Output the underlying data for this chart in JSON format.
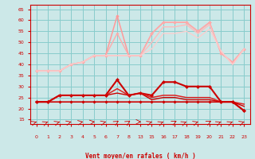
{
  "background_color": "#cce8e8",
  "grid_color": "#88cccc",
  "ylim": [
    13,
    67
  ],
  "yticks": [
    15,
    20,
    25,
    30,
    35,
    40,
    45,
    50,
    55,
    60,
    65
  ],
  "xlabel": "Vent moyen/en rafales ( km/h )",
  "x_labels": [
    "0",
    "1",
    "2",
    "3",
    "4",
    "5",
    "6",
    "7",
    "8",
    "13",
    "15",
    "16",
    "17",
    "18",
    "19",
    "20",
    "21",
    "22",
    "23"
  ],
  "upper_lines": [
    {
      "y": [
        37,
        37,
        37,
        40,
        41,
        44,
        44,
        62,
        44,
        44,
        54,
        59,
        59,
        59,
        55,
        59,
        45,
        41,
        47
      ],
      "color": "#ff9999",
      "linewidth": 1.1,
      "marker": "D",
      "markersize": 2.2
    },
    {
      "y": [
        37,
        37,
        37,
        40,
        41,
        44,
        44,
        54,
        44,
        44,
        54,
        59,
        59,
        59,
        55,
        59,
        45,
        41,
        47
      ],
      "color": "#ffaaaa",
      "linewidth": 1.0,
      "marker": "D",
      "markersize": 2.0
    },
    {
      "y": [
        37,
        37,
        37,
        40,
        41,
        44,
        44,
        44,
        44,
        44,
        50,
        57,
        57,
        58,
        54,
        58,
        46,
        40,
        47
      ],
      "color": "#ffbbbb",
      "linewidth": 1.0,
      "marker": null,
      "markersize": 0
    },
    {
      "y": [
        37,
        37,
        37,
        40,
        41,
        44,
        44,
        44,
        44,
        44,
        47,
        54,
        54,
        55,
        52,
        56,
        46,
        40,
        47
      ],
      "color": "#ffcccc",
      "linewidth": 0.9,
      "marker": null,
      "markersize": 0
    }
  ],
  "lower_lines": [
    {
      "y": [
        23,
        23,
        26,
        26,
        26,
        26,
        26,
        33,
        26,
        27,
        26,
        32,
        32,
        30,
        30,
        30,
        23,
        23,
        19
      ],
      "color": "#cc0000",
      "linewidth": 1.5,
      "marker": "D",
      "markersize": 2.5
    },
    {
      "y": [
        23,
        23,
        26,
        26,
        26,
        26,
        26,
        29,
        26,
        27,
        25,
        26,
        26,
        25,
        25,
        25,
        23,
        23,
        22
      ],
      "color": "#dd2222",
      "linewidth": 1.1,
      "marker": null,
      "markersize": 0
    },
    {
      "y": [
        23,
        23,
        26,
        26,
        26,
        26,
        26,
        27,
        26,
        27,
        24,
        25,
        25,
        24,
        24,
        24,
        23,
        23,
        21
      ],
      "color": "#cc0000",
      "linewidth": 1.0,
      "marker": null,
      "markersize": 0
    },
    {
      "y": [
        23,
        23,
        23,
        23,
        23,
        23,
        23,
        23,
        23,
        23,
        23,
        23,
        23,
        23,
        23,
        23,
        23,
        23,
        19
      ],
      "color": "#cc0000",
      "linewidth": 1.2,
      "marker": "D",
      "markersize": 2.2
    }
  ],
  "arrow_angles": [
    45,
    50,
    45,
    40,
    30,
    20,
    40,
    60,
    60,
    0,
    45,
    50,
    55,
    50,
    45,
    55,
    50,
    50,
    45
  ]
}
